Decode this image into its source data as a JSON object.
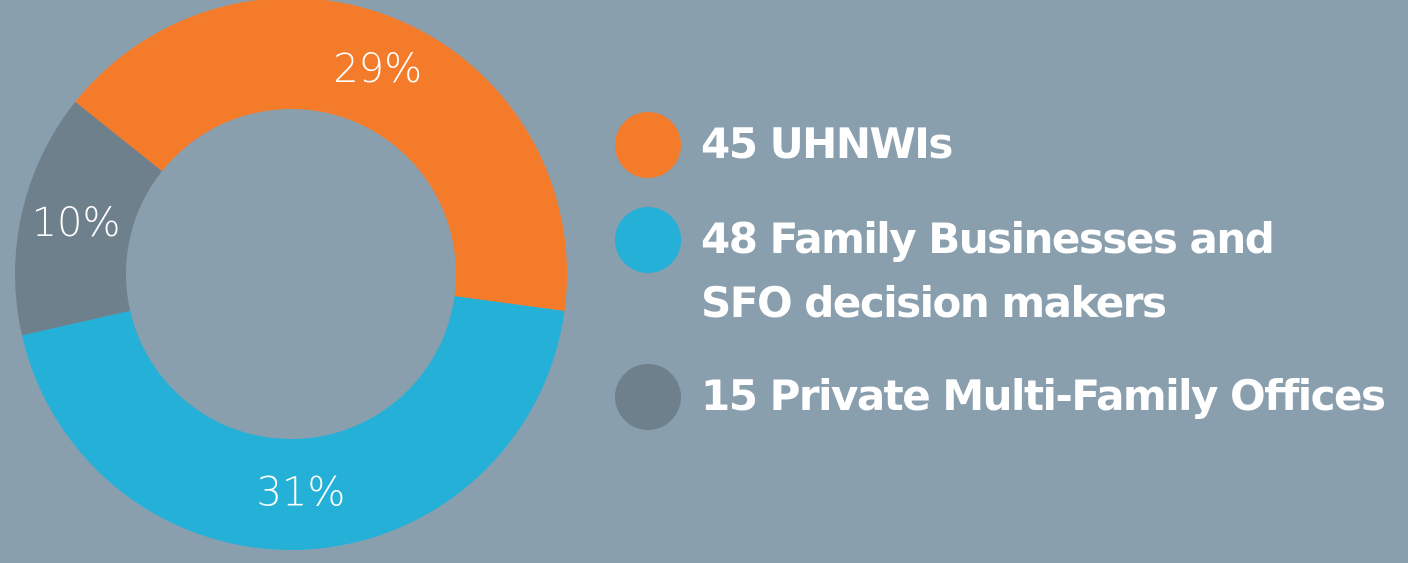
{
  "chart_data": {
    "type": "donut",
    "categories": [
      "45 UHNWIs",
      "48 Family Businesses and SFO decision makers",
      "15 Private Multi-Family Offices"
    ],
    "values": [
      29,
      31,
      10
    ],
    "value_labels": [
      "29%",
      "31%",
      "10%"
    ],
    "colors": [
      "#f47b2a",
      "#24b0d7",
      "#6e808c"
    ]
  }
}
